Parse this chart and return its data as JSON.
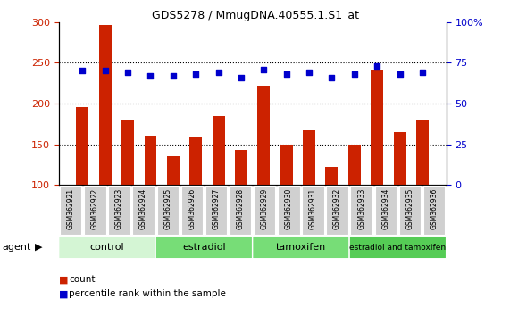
{
  "title": "GDS5278 / MmugDNA.40555.1.S1_at",
  "samples": [
    "GSM362921",
    "GSM362922",
    "GSM362923",
    "GSM362924",
    "GSM362925",
    "GSM362926",
    "GSM362927",
    "GSM362928",
    "GSM362929",
    "GSM362930",
    "GSM362931",
    "GSM362932",
    "GSM362933",
    "GSM362934",
    "GSM362935",
    "GSM362936"
  ],
  "counts": [
    196,
    296,
    180,
    160,
    135,
    158,
    185,
    143,
    222,
    150,
    167,
    122,
    150,
    242,
    165,
    180
  ],
  "percentile_ranks": [
    70,
    70,
    69,
    67,
    67,
    68,
    69,
    66,
    71,
    68,
    69,
    66,
    68,
    73,
    68,
    69
  ],
  "bar_color": "#cc2200",
  "dot_color": "#0000cc",
  "ylim_left": [
    100,
    300
  ],
  "ylim_right": [
    0,
    100
  ],
  "yticks_left": [
    100,
    150,
    200,
    250,
    300
  ],
  "yticks_right": [
    0,
    25,
    50,
    75,
    100
  ],
  "groups": [
    {
      "label": "control",
      "start": 0,
      "end": 4,
      "color": "#d4f5d4"
    },
    {
      "label": "estradiol",
      "start": 4,
      "end": 8,
      "color": "#77dd77"
    },
    {
      "label": "tamoxifen",
      "start": 8,
      "end": 12,
      "color": "#77dd77"
    },
    {
      "label": "estradiol and tamoxifen",
      "start": 12,
      "end": 16,
      "color": "#55cc55"
    }
  ],
  "agent_label": "agent",
  "legend_count_label": "count",
  "legend_percentile_label": "percentile rank within the sample",
  "grid_color": "black",
  "background_plot": "#ffffff",
  "tick_label_color_left": "#cc2200",
  "tick_label_color_right": "#0000cc",
  "xtick_bg": "#d0d0d0"
}
